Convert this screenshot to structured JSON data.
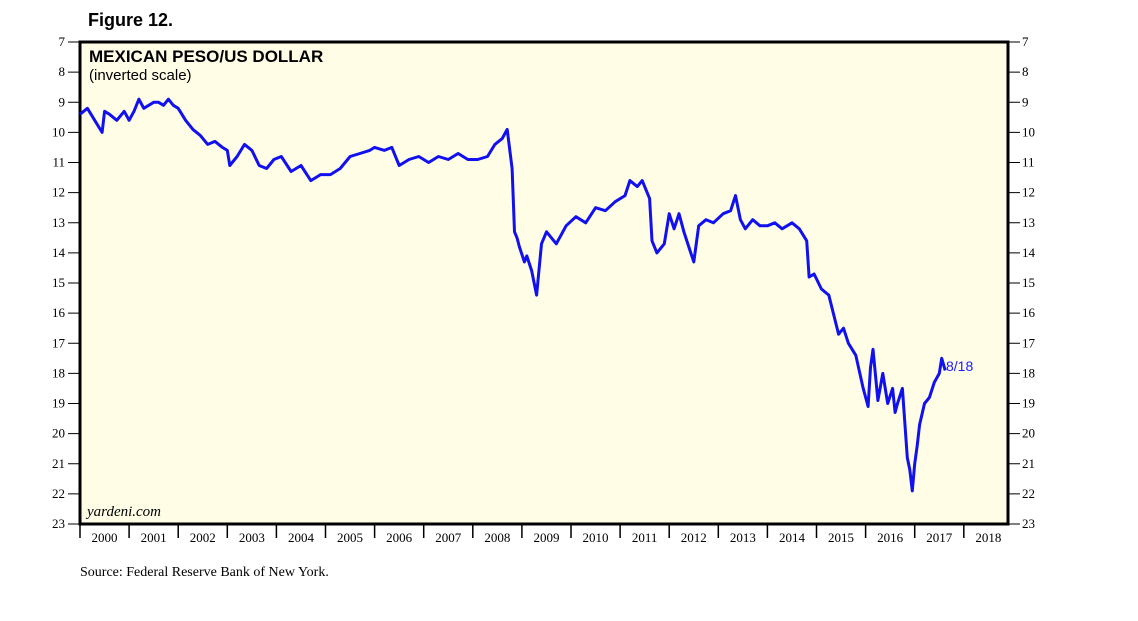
{
  "figure_label": "Figure 12.",
  "source_note": "Source: Federal Reserve Bank of New York.",
  "brand": "yardeni.com",
  "colors": {
    "background": "#fffde6",
    "line": "#1010f0",
    "end_label": "#1a1aff"
  },
  "chart_data": {
    "type": "line",
    "title": "MEXICAN PESO/US DOLLAR",
    "subtitle": "(inverted scale)",
    "xlabel": "",
    "ylabel": "",
    "ylim": [
      7,
      23
    ],
    "y_inverted": true,
    "y_ticks": [
      7,
      8,
      9,
      10,
      11,
      12,
      13,
      14,
      15,
      16,
      17,
      18,
      19,
      20,
      21,
      22,
      23
    ],
    "x_range": [
      2000,
      2018.9
    ],
    "x_tick_labels": [
      "2000",
      "2001",
      "2002",
      "2003",
      "2004",
      "2005",
      "2006",
      "2007",
      "2008",
      "2009",
      "2010",
      "2011",
      "2012",
      "2013",
      "2014",
      "2015",
      "2016",
      "2017",
      "2018"
    ],
    "grid": false,
    "end_annotation": "8/18",
    "series": [
      {
        "name": "",
        "x": [
          2000.0,
          2000.15,
          2000.3,
          2000.45,
          2000.5,
          2000.6,
          2000.75,
          2000.9,
          2001.0,
          2001.1,
          2001.2,
          2001.3,
          2001.4,
          2001.5,
          2001.6,
          2001.7,
          2001.8,
          2001.9,
          2002.0,
          2002.15,
          2002.3,
          2002.45,
          2002.6,
          2002.75,
          2002.9,
          2003.0,
          2003.05,
          2003.2,
          2003.35,
          2003.5,
          2003.65,
          2003.8,
          2003.95,
          2004.1,
          2004.3,
          2004.5,
          2004.7,
          2004.9,
          2005.1,
          2005.3,
          2005.5,
          2005.7,
          2005.9,
          2006.0,
          2006.2,
          2006.35,
          2006.5,
          2006.7,
          2006.9,
          2007.1,
          2007.3,
          2007.5,
          2007.7,
          2007.9,
          2008.1,
          2008.3,
          2008.45,
          2008.6,
          2008.7,
          2008.8,
          2008.85,
          2008.9,
          2008.95,
          2009.05,
          2009.1,
          2009.2,
          2009.3,
          2009.4,
          2009.5,
          2009.7,
          2009.9,
          2010.1,
          2010.3,
          2010.5,
          2010.7,
          2010.9,
          2011.1,
          2011.2,
          2011.35,
          2011.45,
          2011.6,
          2011.65,
          2011.75,
          2011.9,
          2012.0,
          2012.1,
          2012.2,
          2012.3,
          2012.4,
          2012.5,
          2012.6,
          2012.75,
          2012.9,
          2013.1,
          2013.25,
          2013.35,
          2013.45,
          2013.55,
          2013.7,
          2013.85,
          2014.0,
          2014.15,
          2014.3,
          2014.5,
          2014.65,
          2014.8,
          2014.85,
          2014.95,
          2015.1,
          2015.25,
          2015.45,
          2015.55,
          2015.65,
          2015.8,
          2015.95,
          2016.05,
          2016.1,
          2016.15,
          2016.25,
          2016.35,
          2016.45,
          2016.55,
          2016.6,
          2016.65,
          2016.75,
          2016.85,
          2016.9,
          2016.95,
          2017.0,
          2017.05,
          2017.1,
          2017.2,
          2017.3,
          2017.4,
          2017.5,
          2017.55,
          2017.62
        ],
        "values": [
          9.4,
          9.2,
          9.6,
          10.0,
          9.3,
          9.4,
          9.6,
          9.3,
          9.6,
          9.3,
          8.9,
          9.2,
          9.1,
          9.0,
          9.0,
          9.1,
          8.9,
          9.1,
          9.2,
          9.6,
          9.9,
          10.1,
          10.4,
          10.3,
          10.5,
          10.6,
          11.1,
          10.8,
          10.4,
          10.6,
          11.1,
          11.2,
          10.9,
          10.8,
          11.3,
          11.1,
          11.6,
          11.4,
          11.4,
          11.2,
          10.8,
          10.7,
          10.6,
          10.5,
          10.6,
          10.5,
          11.1,
          10.9,
          10.8,
          11.0,
          10.8,
          10.9,
          10.7,
          10.9,
          10.9,
          10.8,
          10.4,
          10.2,
          9.9,
          11.2,
          13.3,
          13.5,
          13.8,
          14.3,
          14.1,
          14.6,
          15.4,
          13.7,
          13.3,
          13.7,
          13.1,
          12.8,
          13.0,
          12.5,
          12.6,
          12.3,
          12.1,
          11.6,
          11.8,
          11.6,
          12.2,
          13.6,
          14.0,
          13.7,
          12.7,
          13.2,
          12.7,
          13.3,
          13.8,
          14.3,
          13.1,
          12.9,
          13.0,
          12.7,
          12.6,
          12.1,
          12.9,
          13.2,
          12.9,
          13.1,
          13.1,
          13.0,
          13.2,
          13.0,
          13.2,
          13.6,
          14.8,
          14.7,
          15.2,
          15.4,
          16.7,
          16.5,
          17.0,
          17.4,
          18.5,
          19.1,
          17.8,
          17.2,
          18.9,
          18.0,
          19.0,
          18.5,
          19.3,
          19.0,
          18.5,
          20.8,
          21.2,
          21.9,
          21.0,
          20.4,
          19.7,
          19.0,
          18.8,
          18.3,
          18.0,
          17.5,
          17.9
        ]
      }
    ]
  }
}
